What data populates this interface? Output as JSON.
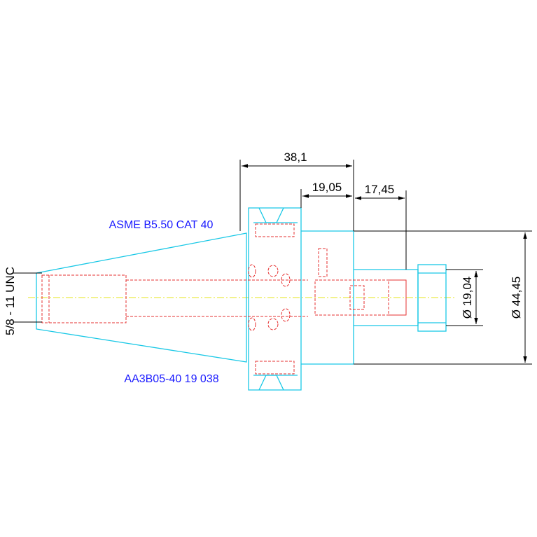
{
  "labels": {
    "standard": "ASME B5.50 CAT 40",
    "part_number": "AA3B05-40 19 038",
    "thread": "5/8 - 11 UNC"
  },
  "dimensions": {
    "overall": "38,1",
    "body": "19,05",
    "shank": "17,45",
    "shank_diameter": "Ø 19,04",
    "body_diameter": "Ø 44,45"
  }
}
